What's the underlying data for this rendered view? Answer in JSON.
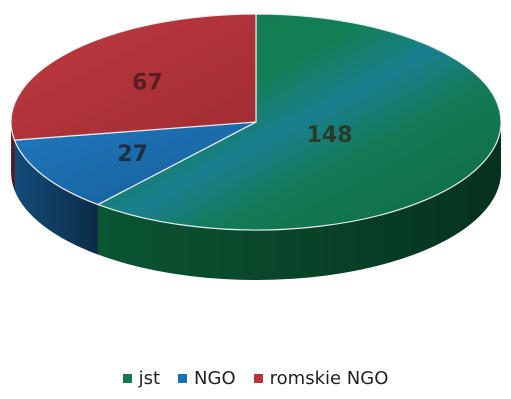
{
  "chart_data": {
    "type": "pie",
    "categories": [
      "jst",
      "NGO",
      "romskie NGO"
    ],
    "values": [
      148,
      27,
      67
    ],
    "colors": [
      "#147a4e",
      "#1e6fb0",
      "#b5353a"
    ],
    "title": "",
    "legend_position": "bottom"
  }
}
